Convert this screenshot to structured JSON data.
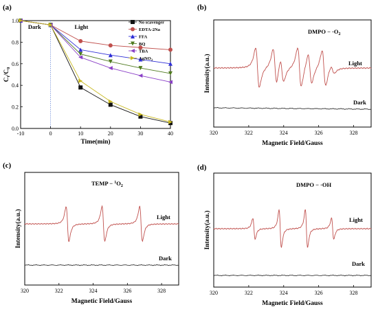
{
  "chart_data": [
    {
      "panel": "(a)",
      "type": "line",
      "xlabel": "Time(min)",
      "ylabel_main": "C",
      "ylabel_sub1": "t",
      "ylabel_mid": "/C",
      "ylabel_sub2": "0",
      "xlim": [
        -10,
        40
      ],
      "ylim": [
        0.0,
        1.0
      ],
      "xticks": [
        "-10",
        "0",
        "10",
        "20",
        "30",
        "40"
      ],
      "yticks": [
        "0.0",
        "0.2",
        "0.4",
        "0.6",
        "0.8",
        "1.0"
      ],
      "region_labels": [
        "Dark",
        "Light"
      ],
      "x": [
        -10,
        0,
        10,
        20,
        30,
        40
      ],
      "series": [
        {
          "name": "No scavenger",
          "color": "#111111",
          "marker": "square",
          "values": [
            1.0,
            0.96,
            0.38,
            0.22,
            0.11,
            0.05
          ]
        },
        {
          "name": "EDTA-2Na",
          "color": "#c0504d",
          "marker": "circle",
          "values": [
            1.0,
            0.96,
            0.81,
            0.77,
            0.75,
            0.73
          ]
        },
        {
          "name": "FFA",
          "color": "#2e2ed6",
          "marker": "triangle-up",
          "values": [
            1.0,
            0.96,
            0.73,
            0.68,
            0.64,
            0.6
          ]
        },
        {
          "name": "BQ",
          "color": "#4f7a1f",
          "marker": "triangle-down",
          "values": [
            1.0,
            0.96,
            0.69,
            0.62,
            0.56,
            0.51
          ]
        },
        {
          "name": "TBA",
          "color": "#8a3fc7",
          "marker": "triangle-left",
          "values": [
            1.0,
            0.96,
            0.66,
            0.56,
            0.49,
            0.43
          ]
        },
        {
          "name": "AgNO",
          "name_sub": "3",
          "color": "#c8b820",
          "marker": "triangle-right",
          "values": [
            1.0,
            0.96,
            0.44,
            0.25,
            0.13,
            0.06
          ]
        }
      ]
    },
    {
      "panel": "(b)",
      "type": "line",
      "title": "DMPO − ·O",
      "title_sub": "2",
      "xlabel": "Magnetic Field/Gauss",
      "ylabel": "Intensity(a.u.)",
      "xlim": [
        320,
        329
      ],
      "xticks": [
        "320",
        "322",
        "324",
        "326",
        "328"
      ],
      "series": [
        {
          "name": "Light",
          "color": "#c0504d",
          "peaks": [
            [
              322.5,
              1.0
            ],
            [
              323.5,
              0.9
            ],
            [
              323.9,
              0.6
            ],
            [
              324.9,
              1.0
            ],
            [
              325.5,
              0.75
            ],
            [
              326.3,
              0.9
            ],
            [
              326.8,
              0.2
            ]
          ]
        },
        {
          "name": "Dark",
          "color": "#333333"
        }
      ]
    },
    {
      "panel": "(c)",
      "type": "line",
      "title": "TEMP − ",
      "title_sup": "1",
      "title_tail": "O",
      "title_sub": "2",
      "xlabel": "Magnetic Field/Gauss",
      "ylabel": "Intensity(a.u.)",
      "xlim": [
        320,
        329
      ],
      "xticks": [
        "320",
        "322",
        "324",
        "326",
        "328"
      ],
      "series": [
        {
          "name": "Light",
          "color": "#c0504d",
          "peaks": [
            [
              322.5,
              1.0
            ],
            [
              324.6,
              1.0
            ],
            [
              326.8,
              1.0
            ]
          ]
        },
        {
          "name": "Dark",
          "color": "#333333"
        }
      ]
    },
    {
      "panel": "(d)",
      "type": "line",
      "title": "DMPO − ·OH",
      "xlabel": "Magnetic Field/Gauss",
      "ylabel": "Intensity(a.u.)",
      "xlim": [
        320,
        329
      ],
      "xticks": [
        "320",
        "322",
        "324",
        "326",
        "328"
      ],
      "series": [
        {
          "name": "Light",
          "color": "#c0504d",
          "peaks": [
            [
              322.3,
              0.55
            ],
            [
              323.8,
              1.0
            ],
            [
              325.3,
              1.0
            ],
            [
              326.8,
              0.55
            ]
          ]
        },
        {
          "name": "Dark",
          "color": "#333333"
        }
      ]
    }
  ]
}
